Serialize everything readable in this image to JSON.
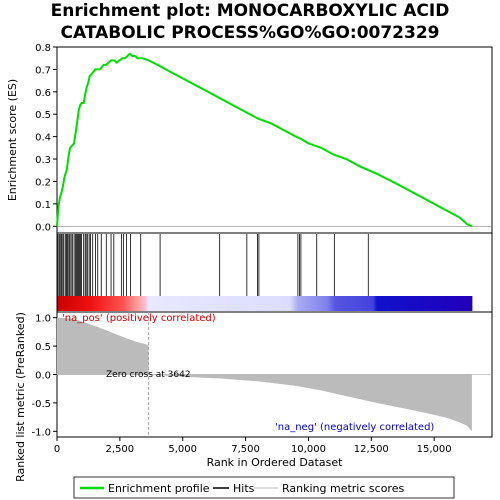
{
  "title_lines": [
    "Enrichment plot: MONOCARBOXYLIC ACID",
    "CATABOLIC PROCESS%GO%GO:0072329"
  ],
  "chart_data": {
    "type": "line",
    "x_total": 16500,
    "xlabel": "Rank in Ordered Dataset",
    "xticks": [
      0,
      2500,
      5000,
      7500,
      10000,
      12500,
      15000
    ],
    "xtick_labels": [
      "0",
      "2,500",
      "5,000",
      "7,500",
      "10,000",
      "12,500",
      "15,000"
    ],
    "es_panel": {
      "ylabel": "Enrichment score (ES)",
      "ylim": [
        -0.03,
        0.8
      ],
      "yticks": [
        0.0,
        0.1,
        0.2,
        0.3,
        0.4,
        0.5,
        0.6,
        0.7,
        0.8
      ],
      "ytick_labels": [
        "0.0",
        "0.1",
        "0.2",
        "0.3",
        "0.4",
        "0.5",
        "0.6",
        "0.7",
        "0.8"
      ],
      "series": [
        {
          "name": "Enrichment profile",
          "color": "#00dd00",
          "points": [
            [
              0,
              0.0
            ],
            [
              30,
              0.05
            ],
            [
              60,
              0.09
            ],
            [
              120,
              0.13
            ],
            [
              180,
              0.15
            ],
            [
              240,
              0.18
            ],
            [
              300,
              0.22
            ],
            [
              380,
              0.25
            ],
            [
              420,
              0.28
            ],
            [
              470,
              0.32
            ],
            [
              520,
              0.35
            ],
            [
              600,
              0.36
            ],
            [
              680,
              0.37
            ],
            [
              730,
              0.41
            ],
            [
              770,
              0.44
            ],
            [
              820,
              0.48
            ],
            [
              870,
              0.52
            ],
            [
              920,
              0.54
            ],
            [
              980,
              0.55
            ],
            [
              1060,
              0.55
            ],
            [
              1120,
              0.59
            ],
            [
              1180,
              0.62
            ],
            [
              1240,
              0.64
            ],
            [
              1300,
              0.67
            ],
            [
              1380,
              0.68
            ],
            [
              1450,
              0.69
            ],
            [
              1520,
              0.7
            ],
            [
              1620,
              0.7
            ],
            [
              1700,
              0.7
            ],
            [
              1780,
              0.71
            ],
            [
              1850,
              0.72
            ],
            [
              1950,
              0.72
            ],
            [
              2050,
              0.73
            ],
            [
              2150,
              0.74
            ],
            [
              2280,
              0.74
            ],
            [
              2380,
              0.73
            ],
            [
              2480,
              0.74
            ],
            [
              2600,
              0.75
            ],
            [
              2700,
              0.75
            ],
            [
              2800,
              0.76
            ],
            [
              2900,
              0.77
            ],
            [
              3000,
              0.76
            ],
            [
              3100,
              0.76
            ],
            [
              3200,
              0.75
            ],
            [
              3400,
              0.75
            ],
            [
              3642,
              0.74
            ],
            [
              4000,
              0.72
            ],
            [
              4500,
              0.69
            ],
            [
              5000,
              0.66
            ],
            [
              5500,
              0.63
            ],
            [
              6000,
              0.6
            ],
            [
              6500,
              0.57
            ],
            [
              7000,
              0.54
            ],
            [
              7500,
              0.51
            ],
            [
              8000,
              0.48
            ],
            [
              8500,
              0.46
            ],
            [
              9000,
              0.43
            ],
            [
              9500,
              0.4
            ],
            [
              9700,
              0.39
            ],
            [
              10000,
              0.37
            ],
            [
              10500,
              0.35
            ],
            [
              11000,
              0.32
            ],
            [
              11500,
              0.3
            ],
            [
              12000,
              0.27
            ],
            [
              12400,
              0.25
            ],
            [
              12800,
              0.23
            ],
            [
              13500,
              0.19
            ],
            [
              14000,
              0.16
            ],
            [
              14500,
              0.13
            ],
            [
              15000,
              0.1
            ],
            [
              15500,
              0.07
            ],
            [
              16000,
              0.04
            ],
            [
              16300,
              0.01
            ],
            [
              16500,
              0.0
            ]
          ]
        }
      ]
    },
    "hits_panel": {
      "label": "Hits",
      "positions": [
        40,
        90,
        130,
        180,
        230,
        270,
        330,
        380,
        420,
        470,
        510,
        560,
        610,
        680,
        730,
        770,
        820,
        860,
        890,
        930,
        970,
        1060,
        1120,
        1160,
        1220,
        1280,
        1330,
        1420,
        1530,
        1620,
        1760,
        1960,
        2150,
        2260,
        2560,
        2640,
        2760,
        2920,
        3330,
        4100,
        6470,
        7550,
        7970,
        8030,
        9580,
        9640,
        9700,
        10330,
        11030,
        12380
      ]
    },
    "ranked_panel": {
      "ylabel": "Ranked list metric (PreRanked)",
      "ylim": [
        -1.1,
        1.1
      ],
      "yticks": [
        1.0,
        0.5,
        0.0,
        -0.5,
        -1.0
      ],
      "ytick_labels": [
        "1.0",
        "0.5",
        "0.0",
        "-0.5",
        "-1.0"
      ],
      "zero_cross": 3642,
      "zero_cross_label": "Zero cross at 3642",
      "pos_label": "'na_pos' (positively correlated)",
      "neg_label": "'na_neg' (negatively correlated)",
      "metric_points": [
        [
          0,
          1.0
        ],
        [
          400,
          0.99
        ],
        [
          800,
          0.96
        ],
        [
          1200,
          0.9
        ],
        [
          1600,
          0.84
        ],
        [
          2000,
          0.77
        ],
        [
          2400,
          0.7
        ],
        [
          2800,
          0.63
        ],
        [
          3200,
          0.57
        ],
        [
          3642,
          0.52
        ],
        [
          3643,
          0.0
        ],
        [
          5000,
          -0.04
        ],
        [
          6500,
          -0.07
        ],
        [
          8000,
          -0.12
        ],
        [
          9500,
          -0.2
        ],
        [
          10500,
          -0.28
        ],
        [
          11500,
          -0.38
        ],
        [
          12500,
          -0.48
        ],
        [
          13500,
          -0.57
        ],
        [
          14500,
          -0.66
        ],
        [
          15500,
          -0.76
        ],
        [
          16000,
          -0.84
        ],
        [
          16300,
          -0.9
        ],
        [
          16500,
          -1.0
        ]
      ]
    },
    "legend": [
      {
        "label": "Enrichment profile",
        "color": "#00dd00"
      },
      {
        "label": "Hits",
        "color": "#000000"
      },
      {
        "label": "Ranking metric scores",
        "color": "#bbbbbb"
      }
    ]
  }
}
